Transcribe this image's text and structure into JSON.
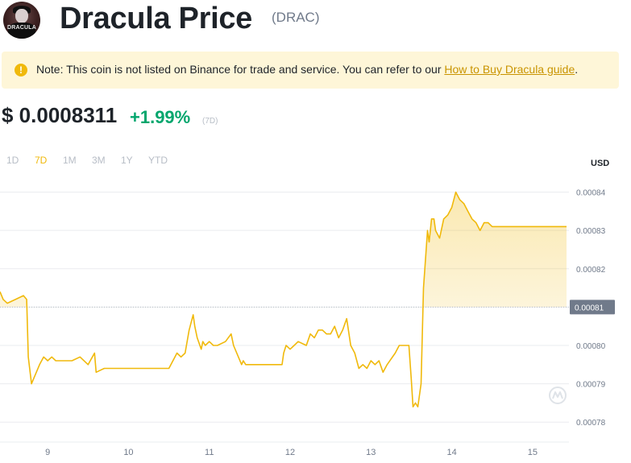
{
  "header": {
    "logo_text": "DRACULA",
    "title": "Dracula Price",
    "symbol": "(DRAC)"
  },
  "note": {
    "icon": "exclamation-icon",
    "text": "Note: This coin is not listed on Binance for trade and service. You can refer to our ",
    "link": "How to Buy Dracula guide",
    "suffix": "."
  },
  "price": {
    "value": "$ 0.0008311",
    "change": "+1.99%",
    "period": "(7D)"
  },
  "ranges": {
    "items": [
      "1D",
      "7D",
      "1M",
      "3M",
      "1Y",
      "YTD"
    ],
    "active": "7D"
  },
  "currency": "USD",
  "colors": {
    "line": "#f0b90b",
    "positive": "#03a66d",
    "muted": "#b7bdc6",
    "note_bg": "#fef6d8",
    "link": "#c99400"
  },
  "watermark_icon": "coinmarketcap-icon",
  "chart_data": {
    "type": "area",
    "ylim": [
      0.000775,
      0.000846
    ],
    "grid": true,
    "y_ticks": [
      "0.00084",
      "0.00083",
      "0.00082",
      "0.00081",
      "0.00080",
      "0.00079",
      "0.00078"
    ],
    "y_tick_values": [
      0.00084,
      0.00083,
      0.00082,
      0.00081,
      0.0008,
      0.00079,
      0.00078
    ],
    "x_ticks": [
      "9",
      "10",
      "11",
      "12",
      "13",
      "14",
      "15"
    ],
    "x_tick_values": [
      9,
      10,
      11,
      12,
      13,
      14,
      15
    ],
    "xlim": [
      8.41,
      15.45
    ],
    "current_value": 0.00081,
    "current_label": "0.00081",
    "series": [
      {
        "x": [
          8.41,
          8.45,
          8.5,
          8.6,
          8.7,
          8.74,
          8.76,
          8.8,
          8.84,
          8.9,
          8.95,
          9.0,
          9.05,
          9.1,
          9.2,
          9.3,
          9.4,
          9.5,
          9.58,
          9.6,
          9.7,
          9.8,
          9.85,
          9.9,
          9.93,
          9.95,
          10.0,
          10.5,
          10.55,
          10.6,
          10.65,
          10.7,
          10.75,
          10.8,
          10.82,
          10.85,
          10.9,
          10.92,
          10.95,
          11.0,
          11.05,
          11.1,
          11.2,
          11.27,
          11.3,
          11.4,
          11.42,
          11.45,
          11.5,
          11.6,
          11.7,
          11.75,
          11.8,
          11.9,
          11.92,
          11.95,
          12.0,
          12.05,
          12.1,
          12.2,
          12.25,
          12.3,
          12.35,
          12.4,
          12.45,
          12.5,
          12.55,
          12.6,
          12.65,
          12.7,
          12.75,
          12.8,
          12.85,
          12.9,
          12.95,
          13.0,
          13.05,
          13.1,
          13.15,
          13.2,
          13.3,
          13.35,
          13.4,
          13.47,
          13.5,
          13.52,
          13.55,
          13.58,
          13.62,
          13.65,
          13.7,
          13.72,
          13.75,
          13.78,
          13.8,
          13.85,
          13.9,
          13.95,
          14.0,
          14.05,
          14.1,
          14.15,
          14.2,
          14.25,
          14.3,
          14.35,
          14.4,
          14.45,
          14.5,
          15.42
        ],
        "y": [
          0.000814,
          0.000812,
          0.000811,
          0.000812,
          0.000813,
          0.000812,
          0.000797,
          0.00079,
          0.000792,
          0.000795,
          0.000797,
          0.000796,
          0.000797,
          0.000796,
          0.000796,
          0.000796,
          0.000797,
          0.000795,
          0.000798,
          0.000793,
          0.000794,
          0.000794,
          0.000794,
          0.000794,
          0.000794,
          0.000794,
          0.000794,
          0.000794,
          0.000796,
          0.000798,
          0.000797,
          0.000798,
          0.000804,
          0.000808,
          0.000805,
          0.000802,
          0.000799,
          0.000801,
          0.0008,
          0.000801,
          0.0008,
          0.0008,
          0.000801,
          0.000803,
          0.0008,
          0.000795,
          0.000796,
          0.000795,
          0.000795,
          0.000795,
          0.000795,
          0.000795,
          0.000795,
          0.000795,
          0.000798,
          0.0008,
          0.000799,
          0.0008,
          0.000801,
          0.0008,
          0.000803,
          0.000802,
          0.000804,
          0.000804,
          0.000803,
          0.000803,
          0.000805,
          0.000802,
          0.000804,
          0.000807,
          0.0008,
          0.000798,
          0.000794,
          0.000795,
          0.000794,
          0.000796,
          0.000795,
          0.000796,
          0.000793,
          0.000795,
          0.000798,
          0.0008,
          0.0008,
          0.0008,
          0.000791,
          0.000784,
          0.000785,
          0.000784,
          0.00079,
          0.000815,
          0.00083,
          0.000827,
          0.000833,
          0.000833,
          0.00083,
          0.000828,
          0.000833,
          0.000834,
          0.000836,
          0.00084,
          0.000838,
          0.000837,
          0.000835,
          0.000833,
          0.000832,
          0.00083,
          0.000832,
          0.000832,
          0.000831,
          0.000831
        ]
      }
    ]
  }
}
